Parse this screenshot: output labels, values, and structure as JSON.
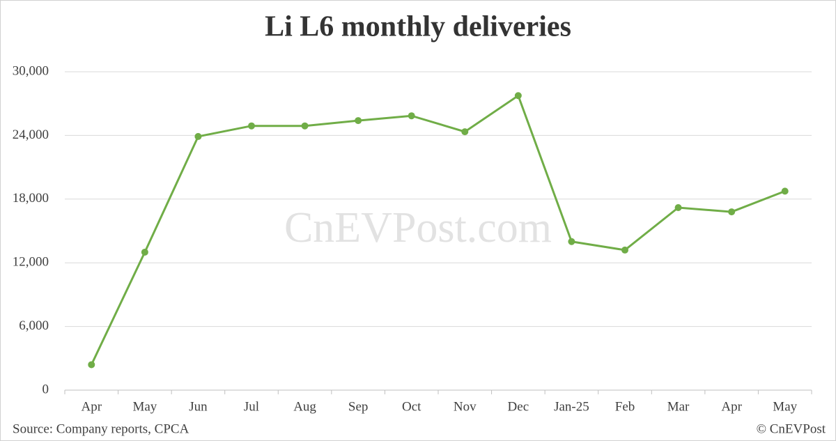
{
  "chart_data": {
    "type": "line",
    "title": "Li L6 monthly deliveries",
    "categories": [
      "Apr",
      "May",
      "Jun",
      "Jul",
      "Aug",
      "Sep",
      "Oct",
      "Nov",
      "Dec",
      "Jan-25",
      "Feb",
      "Mar",
      "Apr",
      "May"
    ],
    "values": [
      2400,
      13000,
      23900,
      24900,
      24900,
      25400,
      25850,
      24350,
      27750,
      14000,
      13200,
      17200,
      16800,
      18750
    ],
    "color": "#70ad47",
    "ylim": [
      0,
      30000
    ],
    "yticks": [
      0,
      {
        "value": 6000,
        "label": "6,000"
      },
      {
        "value": 12000,
        "label": "12,000"
      },
      {
        "value": 18000,
        "label": "18,000"
      },
      {
        "value": 24000,
        "label": "24,000"
      },
      {
        "value": 30000,
        "label": "30,000"
      }
    ],
    "grid": true,
    "watermark": "CnEVPost.com",
    "source": "Source: Company reports, CPCA",
    "credit": "© CnEVPost"
  }
}
